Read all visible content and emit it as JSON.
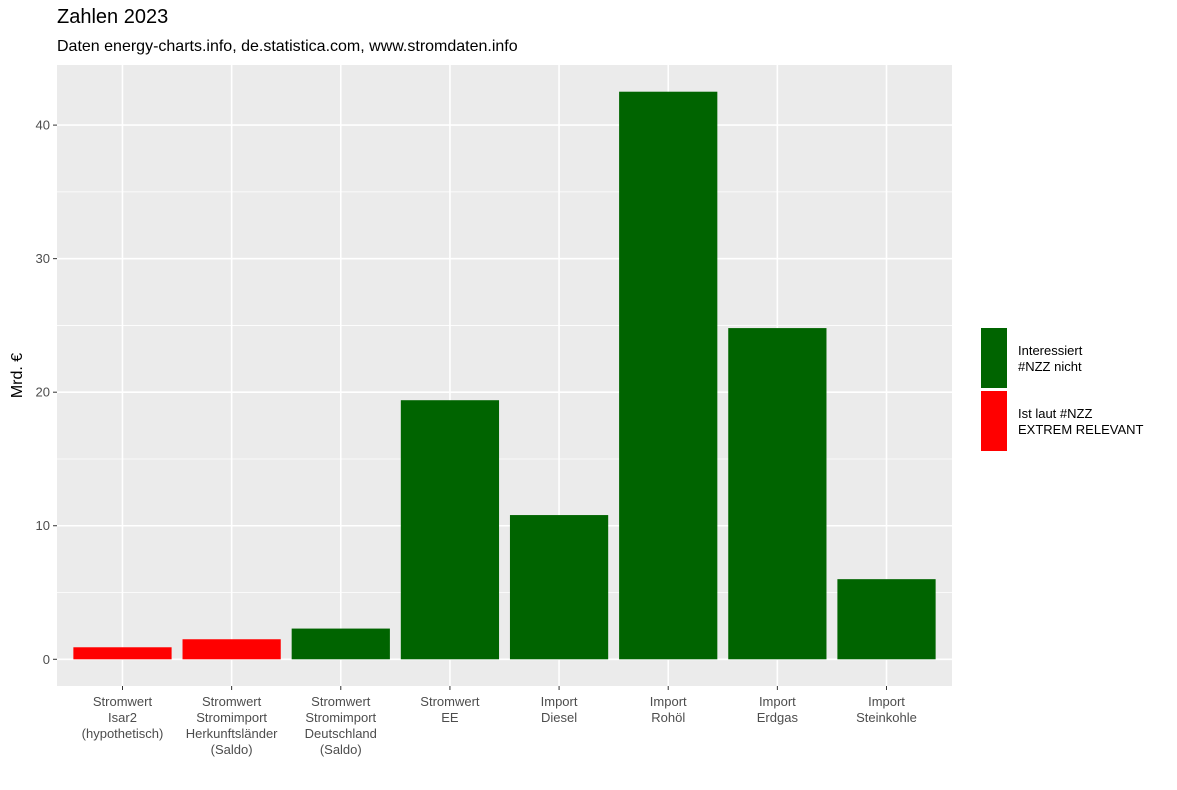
{
  "chart_data": {
    "type": "bar",
    "title": "Zahlen 2023",
    "subtitle": "Daten energy-charts.info, de.statistica.com, www.stromdaten.info",
    "xlabel": "",
    "ylabel": "Mrd. €",
    "ylim": [
      -2,
      44.5
    ],
    "yticks": [
      0,
      10,
      20,
      30,
      40
    ],
    "grid": true,
    "legend_position": "right",
    "categories": [
      [
        "Stromwert",
        "Isar2",
        "(hypothetisch)"
      ],
      [
        "Stromwert",
        "Stromimport",
        "Herkunftsländer",
        "(Saldo)"
      ],
      [
        "Stromwert",
        "Stromimport",
        "Deutschland",
        "(Saldo)"
      ],
      [
        "Stromwert",
        "EE"
      ],
      [
        "Import",
        "Diesel"
      ],
      [
        "Import",
        "Rohöl"
      ],
      [
        "Import",
        "Erdgas"
      ],
      [
        "Import",
        "Steinkohle"
      ]
    ],
    "values": [
      0.9,
      1.5,
      2.3,
      19.4,
      10.8,
      42.5,
      24.8,
      6.0
    ],
    "groups": [
      1,
      1,
      0,
      0,
      0,
      0,
      0,
      0
    ],
    "legend": [
      {
        "lines": [
          "Interessiert",
          "#NZZ nicht"
        ],
        "color": "#006400"
      },
      {
        "lines": [
          "Ist laut #NZZ",
          "EXTREM RELEVANT"
        ],
        "color": "#ff0000"
      }
    ],
    "colors": {
      "panel": "#ebebeb",
      "grid": "#ffffff"
    }
  }
}
